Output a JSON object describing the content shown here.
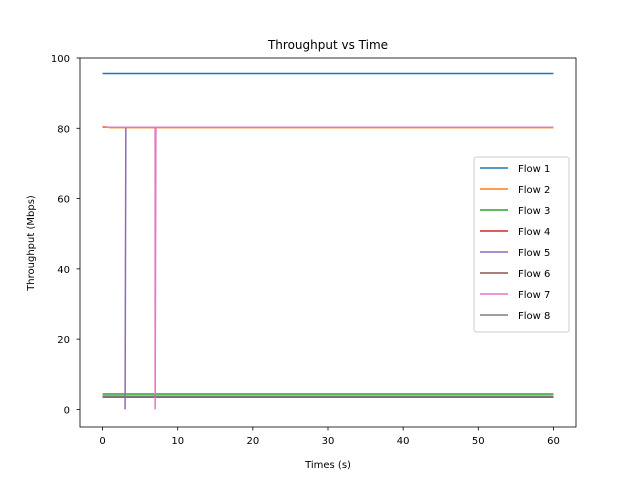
{
  "chart_data": {
    "type": "line",
    "title": "Throughput vs Time",
    "xlabel": "Times (s)",
    "ylabel": "Throughput (Mbps)",
    "xlim": [
      -3,
      63
    ],
    "ylim": [
      -5,
      100
    ],
    "xticks": [
      0,
      10,
      20,
      30,
      40,
      50,
      60
    ],
    "yticks": [
      0,
      20,
      40,
      60,
      80,
      100
    ],
    "grid": false,
    "legend_position": "center-right",
    "series": [
      {
        "name": "Flow 1",
        "color": "#1f77b4",
        "points": [
          [
            0,
            95.6
          ],
          [
            60,
            95.6
          ]
        ]
      },
      {
        "name": "Flow 2",
        "color": "#ff7f0e",
        "points": [
          [
            0,
            80.5
          ],
          [
            1,
            80.2
          ],
          [
            60,
            80.2
          ]
        ]
      },
      {
        "name": "Flow 3",
        "color": "#2ca02c",
        "points": [
          [
            0,
            4.4
          ],
          [
            60,
            4.4
          ]
        ]
      },
      {
        "name": "Flow 4",
        "color": "#d62728",
        "points": [
          [
            0,
            3.5
          ],
          [
            60,
            3.5
          ]
        ]
      },
      {
        "name": "Flow 5",
        "color": "#9467bd",
        "points": [
          [
            0,
            3.8
          ],
          [
            3,
            3.8
          ],
          [
            3,
            0
          ],
          [
            3.1,
            80.3
          ],
          [
            7,
            80.3
          ],
          [
            60,
            80.3
          ]
        ]
      },
      {
        "name": "Flow 6",
        "color": "#8c564b",
        "points": [
          [
            0,
            3.7
          ],
          [
            60,
            3.7
          ]
        ]
      },
      {
        "name": "Flow 7",
        "color": "#e377c2",
        "points": [
          [
            0,
            80.3
          ],
          [
            7,
            80.3
          ],
          [
            7,
            0
          ],
          [
            7.1,
            80.3
          ],
          [
            60,
            80.3
          ]
        ]
      },
      {
        "name": "Flow 8",
        "color": "#7f7f7f",
        "points": [
          [
            0,
            3.8
          ],
          [
            60,
            3.8
          ]
        ]
      }
    ]
  }
}
